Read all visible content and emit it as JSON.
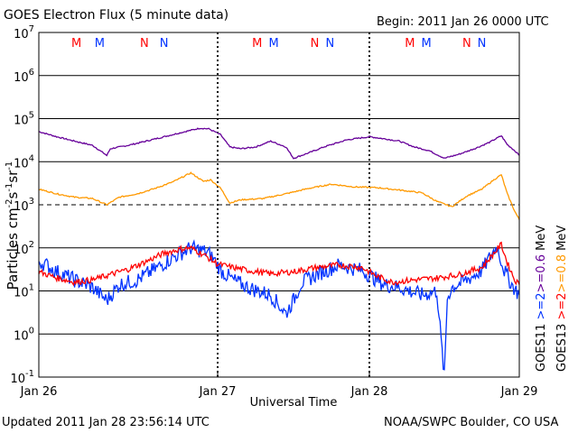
{
  "header": {
    "title": "GOES Electron Flux (5 minute data)",
    "begin": "Begin: 2011 Jan 26 0000 UTC"
  },
  "footer": {
    "updated": "Updated 2011 Jan 28 23:56:14 UTC",
    "credit": "NOAA/SWPC Boulder, CO USA"
  },
  "colors": {
    "purple": "#660099",
    "orange": "#ff9900",
    "blue": "#0033ff",
    "red": "#ff0000",
    "grid": "#000000"
  },
  "chart_data": {
    "type": "line",
    "title": "GOES Electron Flux (5 minute data)",
    "xlabel": "Universal Time",
    "ylabel": "Particles cm-2 s-1 sr-1",
    "yscale": "log",
    "ylim": [
      0.1,
      10000000
    ],
    "xlim_days": [
      0,
      3
    ],
    "x_tick_labels": [
      "Jan 26",
      "Jan 27",
      "Jan 28",
      "Jan 29"
    ],
    "x_tick_days": [
      0,
      1.17,
      2.19,
      3
    ],
    "y_tick_exponents": [
      7,
      6,
      5,
      4,
      3,
      2,
      1,
      0,
      -1
    ],
    "y_tick_labels": [
      "10^7",
      "10^6",
      "10^5",
      "10^4",
      "10^3",
      "10^2",
      "10^1",
      "10^0",
      "10^-1"
    ],
    "dashed_threshold": 1000,
    "grid": true,
    "mn_markers": [
      {
        "label": "M",
        "day": 0.21,
        "color": "red"
      },
      {
        "label": "M",
        "day": 0.34,
        "color": "blue"
      },
      {
        "label": "N",
        "day": 0.59,
        "color": "red"
      },
      {
        "label": "N",
        "day": 0.7,
        "color": "blue"
      },
      {
        "label": "M",
        "day": 1.26,
        "color": "red"
      },
      {
        "label": "M",
        "day": 1.37,
        "color": "blue"
      },
      {
        "label": "N",
        "day": 1.64,
        "color": "red"
      },
      {
        "label": "N",
        "day": 1.74,
        "color": "blue"
      },
      {
        "label": "M",
        "day": 2.27,
        "color": "red"
      },
      {
        "label": "M",
        "day": 2.38,
        "color": "blue"
      },
      {
        "label": "N",
        "day": 2.65,
        "color": "red"
      },
      {
        "label": "N",
        "day": 2.75,
        "color": "blue"
      }
    ],
    "legend": {
      "placement": "right",
      "groups": [
        {
          "sat": "GOES11",
          "entries": [
            {
              "label": ">=2",
              "color": "blue"
            },
            {
              "label": ">=0.6",
              "color": "purple"
            }
          ]
        },
        {
          "sat": "GOES13",
          "entries": [
            {
              "label": ">=2",
              "color": "red"
            },
            {
              "label": ">=0.8",
              "color": "orange"
            }
          ]
        }
      ],
      "unit": "MeV"
    },
    "series": [
      {
        "name": "GOES11 >=0.6 MeV",
        "color": "purple",
        "x": [
          0,
          0.1,
          0.2,
          0.3,
          0.38,
          0.4,
          0.5,
          0.6,
          0.7,
          0.8,
          0.9,
          0.95,
          1.02,
          1.08,
          1.15,
          1.25,
          1.35,
          1.45,
          1.5,
          1.6,
          1.7,
          1.85,
          2.0,
          2.1,
          2.2,
          2.3,
          2.4,
          2.5,
          2.6,
          2.7,
          2.8,
          2.88,
          2.92,
          2.97,
          3.0
        ],
        "y": [
          50000,
          38000,
          30000,
          24000,
          14000,
          20000,
          24000,
          30000,
          38000,
          48000,
          60000,
          58000,
          42000,
          22000,
          20000,
          22000,
          30000,
          22000,
          12000,
          16000,
          22000,
          32000,
          38000,
          34000,
          30000,
          22000,
          18000,
          12000,
          15000,
          20000,
          28000,
          40000,
          25000,
          18000,
          14000
        ]
      },
      {
        "name": "GOES13 >=0.8 MeV",
        "color": "orange",
        "x": [
          0,
          0.1,
          0.2,
          0.3,
          0.38,
          0.45,
          0.55,
          0.65,
          0.75,
          0.85,
          0.92,
          0.96,
          1.02,
          1.08,
          1.15,
          1.3,
          1.45,
          1.6,
          1.75,
          1.9,
          2.05,
          2.2,
          2.35,
          2.45,
          2.55,
          2.65,
          2.75,
          2.83,
          2.88,
          2.92,
          2.97,
          3.0
        ],
        "y": [
          2300,
          1800,
          1500,
          1400,
          1000,
          1500,
          1800,
          2400,
          3400,
          5500,
          3500,
          3800,
          2400,
          1100,
          1300,
          1400,
          1800,
          2400,
          3000,
          2600,
          2500,
          2200,
          1900,
          1200,
          900,
          1600,
          2300,
          3800,
          5000,
          1800,
          700,
          450
        ]
      },
      {
        "name": "GOES11 >=2 MeV",
        "color": "blue",
        "x": [
          0,
          0.05,
          0.1,
          0.2,
          0.3,
          0.38,
          0.45,
          0.55,
          0.65,
          0.75,
          0.85,
          0.92,
          0.96,
          1.02,
          1.1,
          1.2,
          1.35,
          1.45,
          1.5,
          1.55,
          1.65,
          1.8,
          1.95,
          2.1,
          2.2,
          2.35,
          2.45,
          2.5,
          2.52,
          2.55,
          2.65,
          2.75,
          2.85,
          2.9,
          2.95,
          3.0
        ],
        "y": [
          50,
          38,
          28,
          18,
          12,
          6,
          14,
          18,
          32,
          60,
          100,
          85,
          70,
          30,
          18,
          12,
          8,
          3,
          6,
          15,
          24,
          40,
          30,
          14,
          12,
          8,
          10,
          0.1,
          7,
          12,
          18,
          30,
          110,
          30,
          14,
          8
        ]
      },
      {
        "name": "GOES13 >=2 MeV",
        "color": "red",
        "x": [
          0,
          0.1,
          0.2,
          0.3,
          0.4,
          0.5,
          0.6,
          0.7,
          0.8,
          0.85,
          0.92,
          1.0,
          1.1,
          1.2,
          1.35,
          1.5,
          1.65,
          1.8,
          1.95,
          2.05,
          2.15,
          2.3,
          2.45,
          2.6,
          2.75,
          2.85,
          2.88,
          2.92,
          2.97,
          3.0
        ],
        "y": [
          28,
          20,
          16,
          18,
          24,
          32,
          48,
          75,
          95,
          100,
          70,
          42,
          35,
          30,
          25,
          28,
          35,
          40,
          35,
          22,
          16,
          18,
          20,
          24,
          35,
          90,
          120,
          45,
          18,
          14
        ]
      }
    ]
  }
}
